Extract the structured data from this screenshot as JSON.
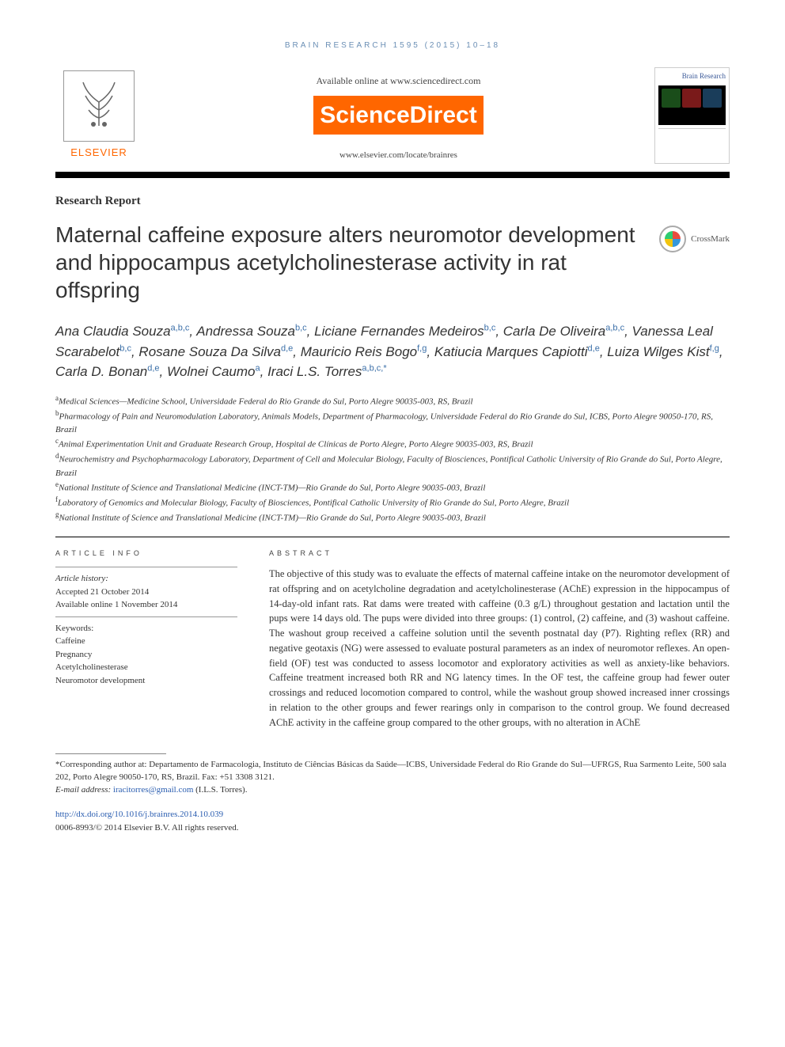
{
  "running_head": "BRAIN RESEARCH 1595 (2015) 10–18",
  "header": {
    "available_online": "Available online at www.sciencedirect.com",
    "brand": "ScienceDirect",
    "journal_url": "www.elsevier.com/locate/brainres",
    "publisher": "ELSEVIER",
    "journal_cover_title": "Brain Research"
  },
  "article_type": "Research Report",
  "title": "Maternal caffeine exposure alters neuromotor development and hippocampus acetylcholinesterase activity in rat offspring",
  "crossmark_label": "CrossMark",
  "authors": [
    {
      "name": "Ana Claudia Souza",
      "aff": "a,b,c"
    },
    {
      "name": "Andressa Souza",
      "aff": "b,c"
    },
    {
      "name": "Liciane Fernandes Medeiros",
      "aff": "b,c"
    },
    {
      "name": "Carla De Oliveira",
      "aff": "a,b,c"
    },
    {
      "name": "Vanessa Leal Scarabelot",
      "aff": "b,c"
    },
    {
      "name": "Rosane Souza Da Silva",
      "aff": "d,e"
    },
    {
      "name": "Mauricio Reis Bogo",
      "aff": "f,g"
    },
    {
      "name": "Katiucia Marques Capiotti",
      "aff": "d,e"
    },
    {
      "name": "Luiza Wilges Kist",
      "aff": "f,g"
    },
    {
      "name": "Carla D. Bonan",
      "aff": "d,e"
    },
    {
      "name": "Wolnei Caumo",
      "aff": "a"
    },
    {
      "name": "Iraci L.S. Torres",
      "aff": "a,b,c,*"
    }
  ],
  "affiliations": [
    {
      "key": "a",
      "text": "Medical Sciences—Medicine School, Universidade Federal do Rio Grande do Sul, Porto Alegre 90035-003, RS, Brazil"
    },
    {
      "key": "b",
      "text": "Pharmacology of Pain and Neuromodulation Laboratory, Animals Models, Department of Pharmacology, Universidade Federal do Rio Grande do Sul, ICBS, Porto Alegre 90050-170, RS, Brazil"
    },
    {
      "key": "c",
      "text": "Animal Experimentation Unit and Graduate Research Group, Hospital de Clínicas de Porto Alegre, Porto Alegre 90035-003, RS, Brazil"
    },
    {
      "key": "d",
      "text": "Neurochemistry and Psychopharmacology Laboratory, Department of Cell and Molecular Biology, Faculty of Biosciences, Pontifical Catholic University of Rio Grande do Sul, Porto Alegre, Brazil"
    },
    {
      "key": "e",
      "text": "National Institute of Science and Translational Medicine (INCT-TM)—Rio Grande do Sul, Porto Alegre 90035-003, Brazil"
    },
    {
      "key": "f",
      "text": "Laboratory of Genomics and Molecular Biology, Faculty of Biosciences, Pontifical Catholic University of Rio Grande do Sul, Porto Alegre, Brazil"
    },
    {
      "key": "g",
      "text": "National Institute of Science and Translational Medicine (INCT-TM)—Rio Grande do Sul, Porto Alegre 90035-003, Brazil"
    }
  ],
  "article_info": {
    "label": "ARTICLE INFO",
    "history_hd": "Article history:",
    "accepted": "Accepted 21 October 2014",
    "online": "Available online 1 November 2014",
    "keywords_hd": "Keywords:",
    "keywords": [
      "Caffeine",
      "Pregnancy",
      "Acetylcholinesterase",
      "Neuromotor development"
    ]
  },
  "abstract": {
    "label": "ABSTRACT",
    "text": "The objective of this study was to evaluate the effects of maternal caffeine intake on the neuromotor development of rat offspring and on acetylcholine degradation and acetylcholinesterase (AChE) expression in the hippocampus of 14-day-old infant rats. Rat dams were treated with caffeine (0.3 g/L) throughout gestation and lactation until the pups were 14 days old. The pups were divided into three groups: (1) control, (2) caffeine, and (3) washout caffeine. The washout group received a caffeine solution until the seventh postnatal day (P7). Righting reflex (RR) and negative geotaxis (NG) were assessed to evaluate postural parameters as an index of neuromotor reflexes. An open-field (OF) test was conducted to assess locomotor and exploratory activities as well as anxiety-like behaviors. Caffeine treatment increased both RR and NG latency times. In the OF test, the caffeine group had fewer outer crossings and reduced locomotion compared to control, while the washout group showed increased inner crossings in relation to the other groups and fewer rearings only in comparison to the control group. We found decreased AChE activity in the caffeine group compared to the other groups, with no alteration in AChE"
  },
  "footnotes": {
    "corresponding": "*Corresponding author at: Departamento de Farmacologia, Instituto de Ciências Básicas da Saúde—ICBS, Universidade Federal do Rio Grande do Sul—UFRGS, Rua Sarmento Leite, 500 sala 202, Porto Alegre 90050-170, RS, Brazil. Fax: +51 3308 3121.",
    "email_label": "E-mail address:",
    "email": "iracitorres@gmail.com",
    "email_owner": "(I.L.S. Torres)."
  },
  "doi": {
    "url": "http://dx.doi.org/10.1016/j.brainres.2014.10.039",
    "copyright": "0006-8993/© 2014 Elsevier B.V. All rights reserved."
  },
  "colors": {
    "brand_orange": "#ff6600",
    "link_blue": "#2a5db0",
    "head_blue": "#6b8fb5"
  }
}
